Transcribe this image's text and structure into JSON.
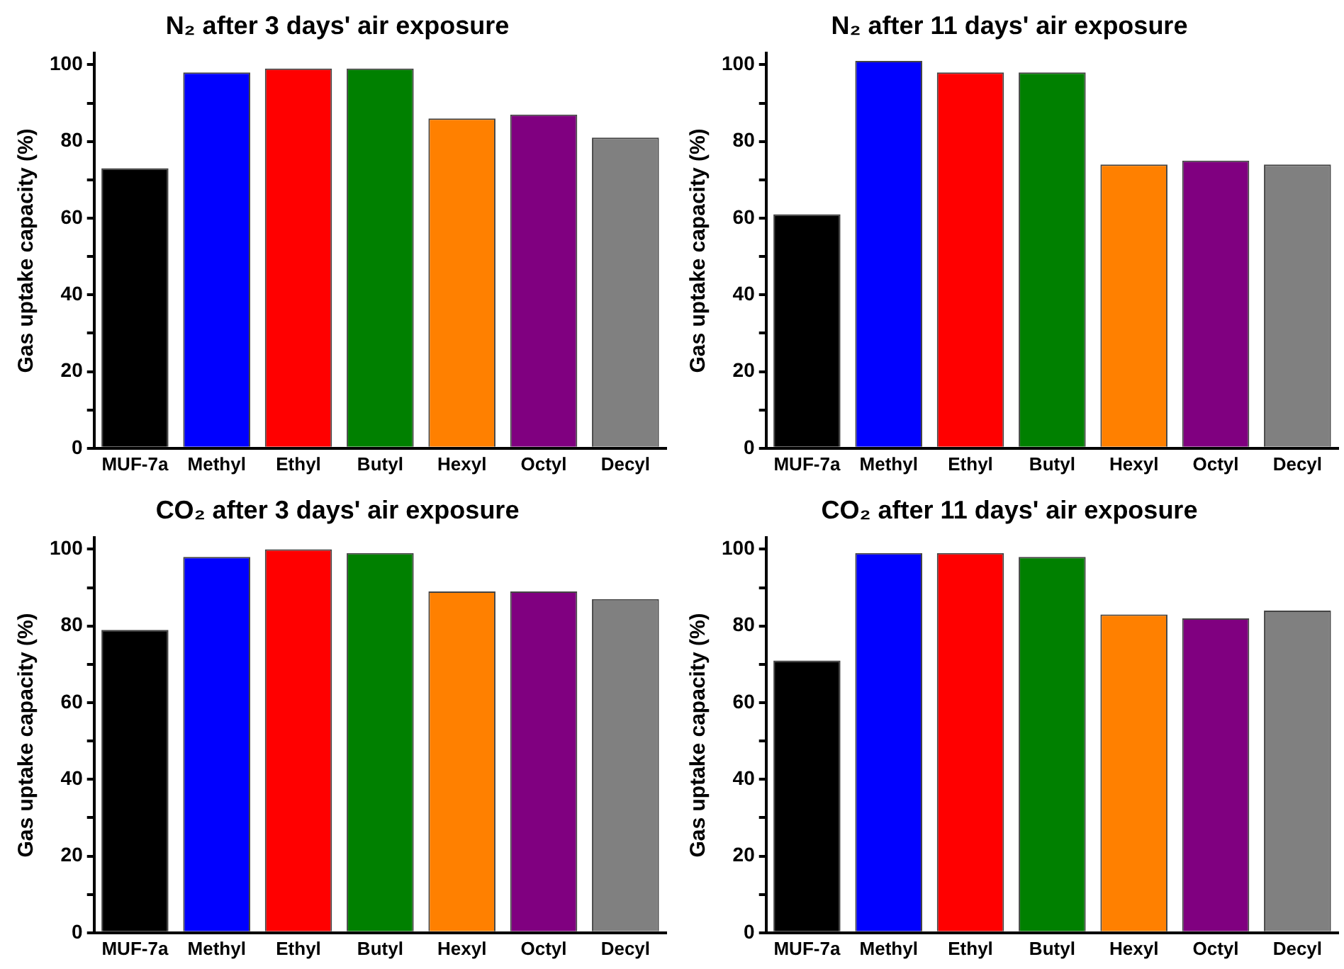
{
  "chart_data": [
    {
      "type": "bar",
      "title": "N₂ after 3 days' air exposure",
      "ylabel": "Gas uptake capacity (%)",
      "categories": [
        "MUF-7a",
        "Methyl",
        "Ethyl",
        "Butyl",
        "Hexyl",
        "Octyl",
        "Decyl"
      ],
      "values": [
        73,
        98,
        99,
        99,
        86,
        87,
        81
      ],
      "colors": [
        "#000000",
        "#0000ff",
        "#ff0000",
        "#008000",
        "#ff8000",
        "#800080",
        "#808080"
      ],
      "ylim": [
        0,
        103
      ],
      "yticks": [
        0,
        {
          "value": 10,
          "label": null
        },
        20,
        {
          "value": 30,
          "label": null
        },
        40,
        {
          "value": 50,
          "label": null
        },
        60,
        {
          "value": 70,
          "label": null
        },
        80,
        {
          "value": 90,
          "label": null
        },
        100
      ],
      "grid": false,
      "legend": false
    },
    {
      "type": "bar",
      "title": "N₂ after 11 days' air exposure",
      "ylabel": "Gas uptake capacity (%)",
      "categories": [
        "MUF-7a",
        "Methyl",
        "Ethyl",
        "Butyl",
        "Hexyl",
        "Octyl",
        "Decyl"
      ],
      "values": [
        61,
        101,
        98,
        98,
        74,
        75,
        74
      ],
      "colors": [
        "#000000",
        "#0000ff",
        "#ff0000",
        "#008000",
        "#ff8000",
        "#800080",
        "#808080"
      ],
      "ylim": [
        0,
        103
      ],
      "yticks": [
        0,
        {
          "value": 10,
          "label": null
        },
        20,
        {
          "value": 30,
          "label": null
        },
        40,
        {
          "value": 50,
          "label": null
        },
        60,
        {
          "value": 70,
          "label": null
        },
        80,
        {
          "value": 90,
          "label": null
        },
        100
      ],
      "grid": false,
      "legend": false
    },
    {
      "type": "bar",
      "title": "CO₂ after 3 days' air exposure",
      "ylabel": "Gas uptake capacity (%)",
      "categories": [
        "MUF-7a",
        "Methyl",
        "Ethyl",
        "Butyl",
        "Hexyl",
        "Octyl",
        "Decyl"
      ],
      "values": [
        79,
        98,
        100,
        99,
        89,
        89,
        87
      ],
      "colors": [
        "#000000",
        "#0000ff",
        "#ff0000",
        "#008000",
        "#ff8000",
        "#800080",
        "#808080"
      ],
      "ylim": [
        0,
        103
      ],
      "yticks": [
        0,
        {
          "value": 10,
          "label": null
        },
        20,
        {
          "value": 30,
          "label": null
        },
        40,
        {
          "value": 50,
          "label": null
        },
        60,
        {
          "value": 70,
          "label": null
        },
        80,
        {
          "value": 90,
          "label": null
        },
        100
      ],
      "grid": false,
      "legend": false
    },
    {
      "type": "bar",
      "title": "CO₂ after 11 days' air exposure",
      "ylabel": "Gas uptake capacity (%)",
      "categories": [
        "MUF-7a",
        "Methyl",
        "Ethyl",
        "Butyl",
        "Hexyl",
        "Octyl",
        "Decyl"
      ],
      "values": [
        71,
        99,
        99,
        98,
        83,
        82,
        84
      ],
      "colors": [
        "#000000",
        "#0000ff",
        "#ff0000",
        "#008000",
        "#ff8000",
        "#800080",
        "#808080"
      ],
      "ylim": [
        0,
        103
      ],
      "yticks": [
        0,
        {
          "value": 10,
          "label": null
        },
        20,
        {
          "value": 30,
          "label": null
        },
        40,
        {
          "value": 50,
          "label": null
        },
        60,
        {
          "value": 70,
          "label": null
        },
        80,
        {
          "value": 90,
          "label": null
        },
        100
      ],
      "grid": false,
      "legend": false
    }
  ]
}
